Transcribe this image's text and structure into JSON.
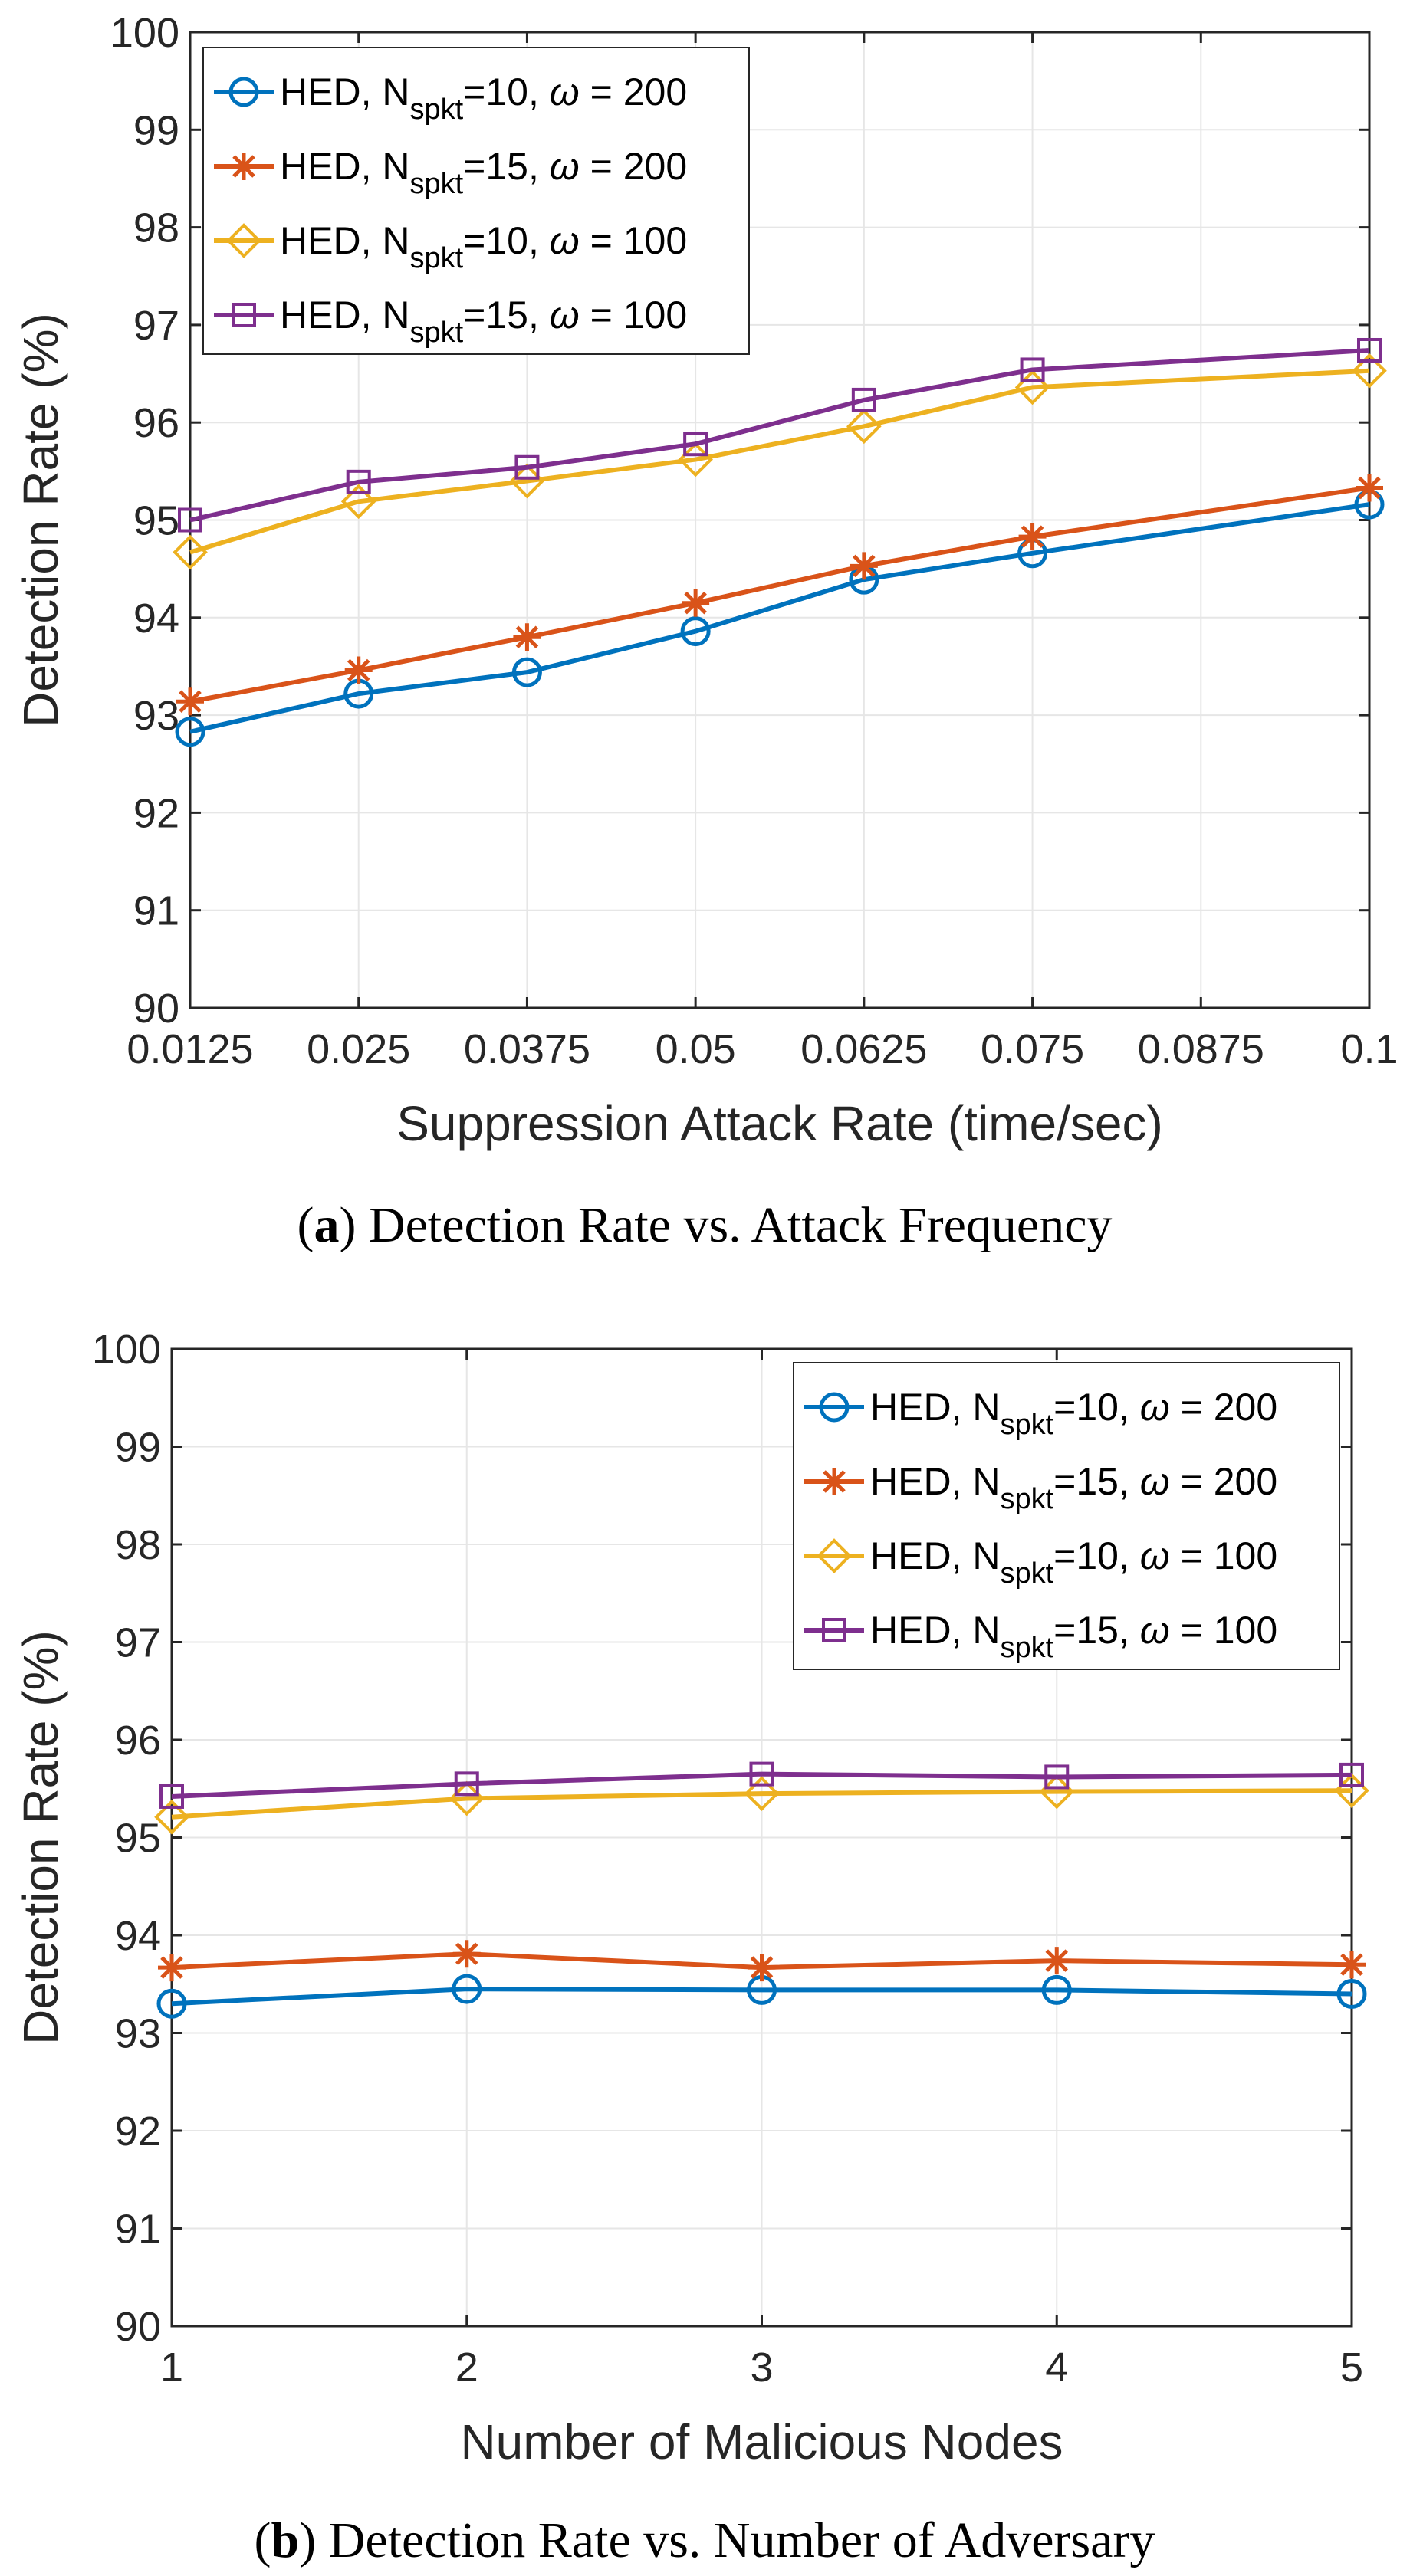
{
  "chart_data": [
    {
      "type": "line",
      "caption_letter": "a",
      "caption_text": "Detection Rate vs. Attack Frequency",
      "xlabel": "Suppression Attack Rate (time/sec)",
      "ylabel": "Detection Rate (%)",
      "x": [
        0.0125,
        0.025,
        0.0375,
        0.05,
        0.0625,
        0.075,
        0.1
      ],
      "xlim": [
        0.0125,
        0.1
      ],
      "ylim": [
        90,
        100
      ],
      "xticks": [
        0.0125,
        0.025,
        0.0375,
        0.05,
        0.0625,
        0.075,
        0.0875,
        0.1
      ],
      "xtick_labels": [
        "0.0125",
        "0.025",
        "0.0375",
        "0.05",
        "0.0625",
        "0.075",
        "0.0875",
        "0.1"
      ],
      "yticks": [
        90,
        91,
        92,
        93,
        94,
        95,
        96,
        97,
        98,
        99,
        100
      ],
      "ytick_labels": [
        "90",
        "91",
        "92",
        "93",
        "94",
        "95",
        "96",
        "97",
        "98",
        "99",
        "100"
      ],
      "grid": true,
      "legend_position": "top-left",
      "series": [
        {
          "label_pre": "HED, N",
          "label_sub": "spkt",
          "label_post": "=10, ",
          "label_omega": "ω",
          "label_end": " = 200",
          "color": "#0072BD",
          "marker": "circle",
          "values": [
            92.83,
            93.22,
            93.44,
            93.86,
            94.39,
            94.66,
            95.16
          ]
        },
        {
          "label_pre": "HED, N",
          "label_sub": "spkt",
          "label_post": "=15, ",
          "label_omega": "ω",
          "label_end": " = 200",
          "color": "#D95319",
          "marker": "asterisk",
          "values": [
            93.14,
            93.46,
            93.8,
            94.15,
            94.53,
            94.83,
            95.33
          ]
        },
        {
          "label_pre": "HED, N",
          "label_sub": "spkt",
          "label_post": "=10, ",
          "label_omega": "ω",
          "label_end": " = 100",
          "color": "#EDB120",
          "marker": "diamond",
          "values": [
            94.67,
            95.19,
            95.4,
            95.62,
            95.96,
            96.36,
            96.53
          ]
        },
        {
          "label_pre": "HED, N",
          "label_sub": "spkt",
          "label_post": "=15, ",
          "label_omega": "ω",
          "label_end": " = 100",
          "color": "#7E2F8E",
          "marker": "square",
          "values": [
            95.0,
            95.39,
            95.54,
            95.78,
            96.23,
            96.54,
            96.74
          ]
        }
      ]
    },
    {
      "type": "line",
      "caption_letter": "b",
      "caption_text": "Detection Rate vs. Number of Adversary",
      "xlabel": "Number of Malicious Nodes",
      "ylabel": "Detection Rate (%)",
      "x": [
        1,
        2,
        3,
        4,
        5
      ],
      "xlim": [
        1,
        5
      ],
      "ylim": [
        90,
        100
      ],
      "xticks": [
        1,
        2,
        3,
        4,
        5
      ],
      "xtick_labels": [
        "1",
        "2",
        "3",
        "4",
        "5"
      ],
      "yticks": [
        90,
        91,
        92,
        93,
        94,
        95,
        96,
        97,
        98,
        99,
        100
      ],
      "ytick_labels": [
        "90",
        "91",
        "92",
        "93",
        "94",
        "95",
        "96",
        "97",
        "98",
        "99",
        "100"
      ],
      "grid": true,
      "legend_position": "top-right",
      "series": [
        {
          "label_pre": "HED, N",
          "label_sub": "spkt",
          "label_post": "=10, ",
          "label_omega": "ω",
          "label_end": " = 200",
          "color": "#0072BD",
          "marker": "circle",
          "values": [
            93.3,
            93.45,
            93.44,
            93.44,
            93.4
          ]
        },
        {
          "label_pre": "HED, N",
          "label_sub": "spkt",
          "label_post": "=15, ",
          "label_omega": "ω",
          "label_end": " = 200",
          "color": "#D95319",
          "marker": "asterisk",
          "values": [
            93.67,
            93.81,
            93.67,
            93.74,
            93.7
          ]
        },
        {
          "label_pre": "HED, N",
          "label_sub": "spkt",
          "label_post": "=10, ",
          "label_omega": "ω",
          "label_end": " = 100",
          "color": "#EDB120",
          "marker": "diamond",
          "values": [
            95.21,
            95.4,
            95.45,
            95.47,
            95.48
          ]
        },
        {
          "label_pre": "HED, N",
          "label_sub": "spkt",
          "label_post": "=15, ",
          "label_omega": "ω",
          "label_end": " = 100",
          "color": "#7E2F8E",
          "marker": "square",
          "values": [
            95.42,
            95.55,
            95.65,
            95.62,
            95.64
          ]
        }
      ]
    }
  ]
}
